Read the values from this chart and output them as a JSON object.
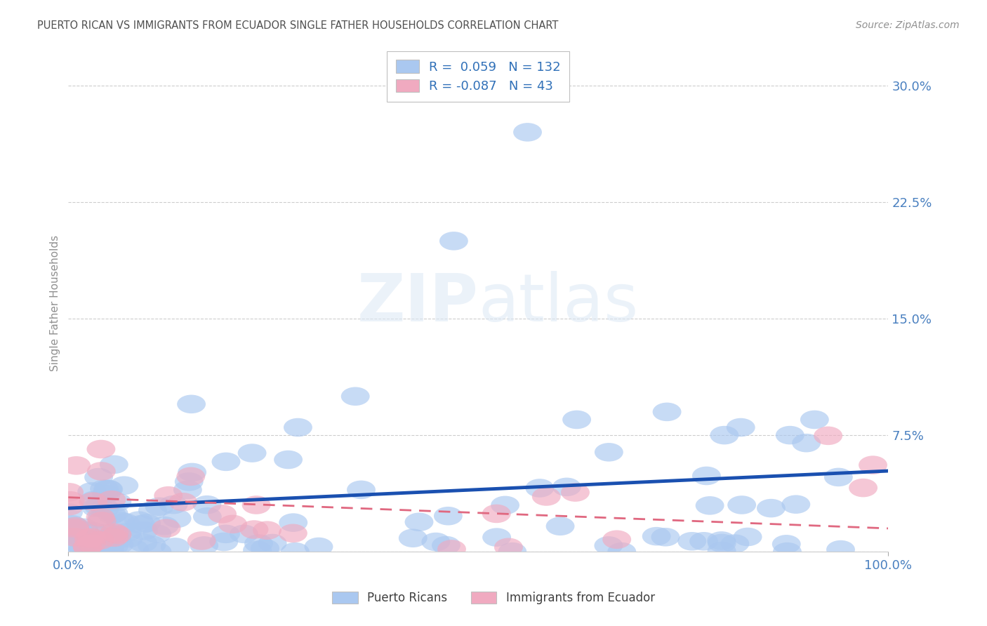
{
  "title": "PUERTO RICAN VS IMMIGRANTS FROM ECUADOR SINGLE FATHER HOUSEHOLDS CORRELATION CHART",
  "source": "Source: ZipAtlas.com",
  "ylabel": "Single Father Households",
  "xlim": [
    0,
    100
  ],
  "ylim": [
    0,
    32
  ],
  "yticks": [
    0,
    7.5,
    15.0,
    22.5,
    30.0
  ],
  "ytick_labels_right": [
    "",
    "7.5%",
    "15.0%",
    "22.5%",
    "30.0%"
  ],
  "legend_pr_label": "Puerto Ricans",
  "legend_ec_label": "Immigrants from Ecuador",
  "pr_color": "#aac8f0",
  "ec_color": "#f0aac0",
  "pr_line_color": "#1a50b0",
  "ec_line_color": "#e06880",
  "pr_R": 0.059,
  "pr_N": 132,
  "ec_R": -0.087,
  "ec_N": 43,
  "watermark": "ZIPatlas",
  "background_color": "#ffffff",
  "grid_color": "#c8c8c8",
  "title_color": "#505050",
  "axis_label_color": "#4a80c0",
  "legend_R_color": "#3070b8"
}
